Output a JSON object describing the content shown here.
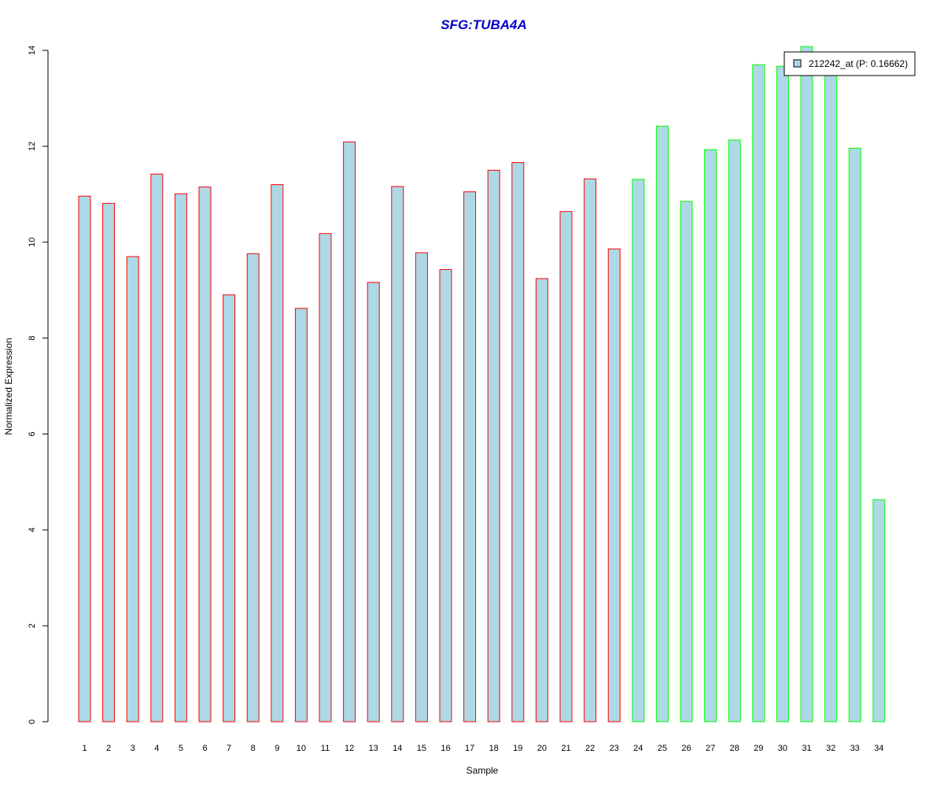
{
  "chart_data": {
    "type": "bar",
    "title": "SFG:TUBA4A",
    "xlabel": "Sample",
    "ylabel": "Normalized Expression",
    "ylim": [
      0,
      14
    ],
    "yticks": [
      0,
      2,
      4,
      6,
      8,
      10,
      12,
      14
    ],
    "categories": [
      "1",
      "2",
      "3",
      "4",
      "5",
      "6",
      "7",
      "8",
      "9",
      "10",
      "11",
      "12",
      "13",
      "14",
      "15",
      "16",
      "17",
      "18",
      "19",
      "20",
      "21",
      "22",
      "23",
      "24",
      "25",
      "26",
      "27",
      "28",
      "29",
      "30",
      "31",
      "32",
      "33",
      "34"
    ],
    "series": [
      {
        "name": "212242_at (P: 0.16662)",
        "values": [
          10.96,
          10.81,
          9.7,
          11.42,
          11.01,
          11.15,
          8.9,
          9.76,
          11.2,
          8.62,
          10.18,
          12.09,
          9.16,
          11.16,
          9.78,
          9.43,
          11.05,
          11.5,
          11.66,
          9.24,
          10.64,
          11.32,
          9.86,
          11.31,
          12.42,
          10.85,
          11.93,
          12.13,
          13.7,
          13.67,
          14.08,
          13.6,
          11.96,
          4.63
        ],
        "fill": "#add8e6",
        "group_colors": [
          "#ff0000",
          "#ff0000",
          "#ff0000",
          "#ff0000",
          "#ff0000",
          "#ff0000",
          "#ff0000",
          "#ff0000",
          "#ff0000",
          "#ff0000",
          "#ff0000",
          "#ff0000",
          "#ff0000",
          "#ff0000",
          "#ff0000",
          "#ff0000",
          "#ff0000",
          "#ff0000",
          "#ff0000",
          "#ff0000",
          "#ff0000",
          "#ff0000",
          "#ff0000",
          "#00ff00",
          "#00ff00",
          "#00ff00",
          "#00ff00",
          "#00ff00",
          "#00ff00",
          "#00ff00",
          "#00ff00",
          "#00ff00",
          "#00ff00",
          "#00ff00"
        ]
      }
    ],
    "legend": {
      "placement": "top-right",
      "label": "212242_at (P: 0.16662)"
    },
    "grid": false,
    "title_color": "#0000cd"
  }
}
